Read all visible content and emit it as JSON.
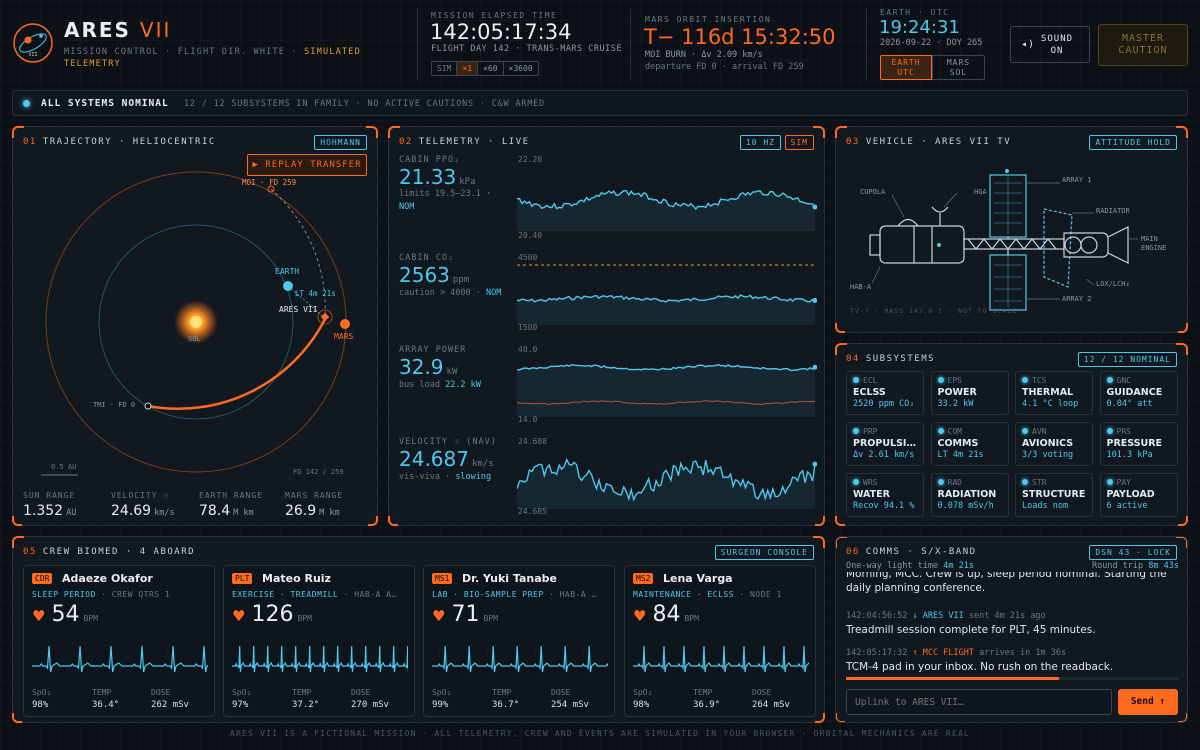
{
  "header": {
    "mission": "ARES",
    "mission_num": "VII",
    "logo_text": "VII",
    "sub1": "MISSION CONTROL · FLIGHT DIR. WHITE · ",
    "sub_sim": "SIMULATED",
    "sub2": "TELEMETRY",
    "met_label": "MISSION ELAPSED TIME",
    "met": "142:05:17:34",
    "met_sub": "FLIGHT DAY 142 · TRANS-MARS CRUISE",
    "speeds": [
      "SIM",
      "×1",
      "×60",
      "×3600"
    ],
    "moi_label": "MARS ORBIT INSERTION",
    "moi": "T− 116d 15:32:50",
    "moi_sub": "MOI BURN · Δv 2.09 km/s",
    "moi_sub2": "departure FD 0 · arrival FD 259",
    "earth_label": "EARTH · UTC",
    "earth_time": "19:24:31",
    "earth_date": "2026-09-22 · DOY 265",
    "clock_btn1": "EARTH\nUTC",
    "clock_btn2": "MARS\nSOL",
    "sound": "SOUND\nON",
    "caution": "MASTER\nCAUTION"
  },
  "status": {
    "main": "ALL SYSTEMS NOMINAL",
    "detail": "12 / 12 SUBSYSTEMS IN FAMILY · NO ACTIVE CAUTIONS · C&W ARMED"
  },
  "trajectory": {
    "num": "01",
    "title": "TRAJECTORY · HELIOCENTRIC",
    "tag": "HOHMANN",
    "replay": "▶ REPLAY TRANSFER",
    "moi_label": "MOI · FD 259",
    "earth": "EARTH",
    "lt": "LT 4m 21s",
    "craft": "ARES VII",
    "mars": "MARS",
    "sun": "SOL",
    "tmi": "TMI · FD 0",
    "scale": "0.5 AU",
    "fd": "FD 142 / 259",
    "stats": [
      {
        "k": "SUN RANGE",
        "v": "1.352",
        "u": "AU"
      },
      {
        "k": "VELOCITY ☉",
        "v": "24.69",
        "u": "km/s"
      },
      {
        "k": "EARTH RANGE",
        "v": "78.4",
        "u": "M km"
      },
      {
        "k": "MARS RANGE",
        "v": "26.9",
        "u": "M km"
      }
    ]
  },
  "telemetry": {
    "num": "02",
    "title": "TELEMETRY · LIVE",
    "tag1": "10 HZ",
    "tag2": "SIM",
    "ppo2": {
      "label": "CABIN PPO₂",
      "value": "21.33",
      "unit": "kPa",
      "note": "limits 19.5–23.1 ·",
      "status": "NOM",
      "ymax": "22.20",
      "ymin": "20.40"
    },
    "co2": {
      "label": "CABIN CO₂",
      "value": "2563",
      "unit": "ppm",
      "note": "caution > 4000 ·",
      "status": "NOM",
      "ymax": "4500",
      "ymin": "1500"
    },
    "power": {
      "label": "ARRAY POWER",
      "value": "32.9",
      "unit": "kW",
      "note": "bus load",
      "load": "22.2 kW",
      "ymax": "40.0",
      "ymin": "14.0"
    },
    "vel": {
      "label": "VELOCITY ☉ (NAV)",
      "value": "24.687",
      "unit": "km/s",
      "note": "vis-viva ·",
      "status": "slowing",
      "ymax": "24.688",
      "ymin": "24.685"
    }
  },
  "vehicle": {
    "num": "03",
    "title": "VEHICLE · ARES VII TV",
    "tag": "ATTITUDE HOLD",
    "labels": {
      "cupola": "CUPOLA",
      "hga": "HGA",
      "array1": "ARRAY 1",
      "radiator": "RADIATOR",
      "main_engine": "MAIN\nENGINE",
      "lox": "LOX/LCH₄",
      "haba": "HAB-A",
      "array2": "ARRAY 2"
    },
    "foot": "TV-7 · MASS 142.6 t · NOT TO SCALE"
  },
  "subsystems": {
    "num": "04",
    "title": "SUBSYSTEMS",
    "tag": "12 / 12 NOMINAL",
    "items": [
      {
        "code": "ECL",
        "name": "ECLSS",
        "val": "2520 ppm CO₂"
      },
      {
        "code": "EPS",
        "name": "POWER",
        "val": "33.2 kW"
      },
      {
        "code": "TCS",
        "name": "THERMAL",
        "val": "4.1 °C loop"
      },
      {
        "code": "GNC",
        "name": "GUIDANCE",
        "val": "0.04° att"
      },
      {
        "code": "PRP",
        "name": "PROPULSI…",
        "val": "Δv 2.61 km/s"
      },
      {
        "code": "COM",
        "name": "COMMS",
        "val": "LT 4m 21s"
      },
      {
        "code": "AVN",
        "name": "AVIONICS",
        "val": "3/3 voting"
      },
      {
        "code": "PRS",
        "name": "PRESSURE",
        "val": "101.3 kPa"
      },
      {
        "code": "WRS",
        "name": "WATER",
        "val": "Recov 94.1 %"
      },
      {
        "code": "RAD",
        "name": "RADIATION",
        "val": "0.078 mSv/h"
      },
      {
        "code": "STR",
        "name": "STRUCTURE",
        "val": "Loads nom"
      },
      {
        "code": "PAY",
        "name": "PAYLOAD",
        "val": "6 active"
      }
    ]
  },
  "crew": {
    "num": "05",
    "title": "CREW BIOMED · 4 ABOARD",
    "tag": "SURGEON CONSOLE",
    "members": [
      {
        "role": "CDR",
        "name": "Adaeze Okafor",
        "act": "SLEEP PERIOD",
        "loc": " · CREW QTRS 1",
        "hr": "54",
        "spo2": "98%",
        "temp": "36.4°",
        "dose": "262 mSv"
      },
      {
        "role": "PLT",
        "name": "Mateo Ruiz",
        "act": "EXERCISE · TREADMILL",
        "loc": " · HAB-A A…",
        "hr": "126",
        "spo2": "97%",
        "temp": "37.2°",
        "dose": "270 mSv"
      },
      {
        "role": "MS1",
        "name": "Dr. Yuki Tanabe",
        "act": "LAB · BIO-SAMPLE PREP",
        "loc": " · HAB-A …",
        "hr": "71",
        "spo2": "99%",
        "temp": "36.7°",
        "dose": "254 mSv"
      },
      {
        "role": "MS2",
        "name": "Lena Varga",
        "act": "MAINTENANCE · ECLSS",
        "loc": " · NODE 1",
        "hr": "84",
        "spo2": "98%",
        "temp": "36.9°",
        "dose": "264 mSv"
      }
    ],
    "labels": {
      "bpm": "BPM",
      "spo2": "SpO₂",
      "temp": "TEMP",
      "dose": "DOSE"
    }
  },
  "comms": {
    "num": "06",
    "title": "COMMS · S/X-BAND",
    "tag": "DSN 43 · LOCK",
    "oneway_label": "One-way light time",
    "oneway": "4m 21s",
    "rt_label": "Round trip",
    "rt": "8m 43s",
    "cut_msg": "Morning, MCC. Crew is up, sleep period nominal. Starting the daily planning conference.",
    "msgs": [
      {
        "time": "142:04:56:52",
        "from": "↓ ARES VII",
        "meta": "sent 4m 21s ago",
        "text": "Treadmill session complete for PLT, 45 minutes."
      },
      {
        "time": "142:05:17:32",
        "from": "↑ MCC FLIGHT",
        "meta": "arrives in 1m 36s",
        "text": "TCM-4 pad in your inbox. No rush on the readback."
      }
    ],
    "progress": 0.64,
    "placeholder": "Uplink to ARES VII…",
    "send": "Send ↑"
  },
  "footer": "ARES VII IS A FICTIONAL MISSION · ALL TELEMETRY, CREW AND EVENTS ARE SIMULATED IN YOUR BROWSER · ORBITAL MECHANICS ARE REAL",
  "colors": {
    "accent": "#ff6a1f",
    "cyan": "#4fc8ec",
    "bg": "#0c1117"
  }
}
